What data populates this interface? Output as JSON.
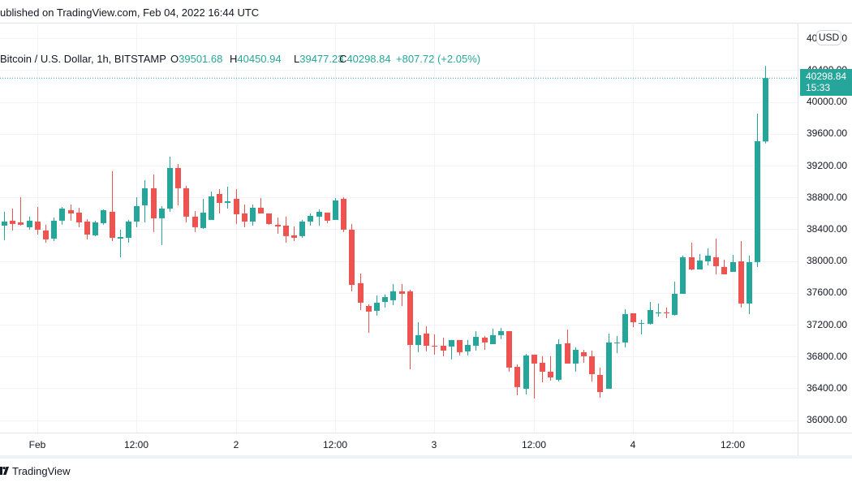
{
  "header": {
    "published": "ublished on TradingView.com, Feb 04, 2022 16:44 UTC"
  },
  "legend": {
    "symbol": "Bitcoin / U.S. Dollar, 1h, BITSTAMP",
    "open_label": "O",
    "open": "39501.68",
    "high_label": "H",
    "high": "40450.94",
    "low_label": "L",
    "low": "39477.23",
    "close_label": "C",
    "close": "40298.84",
    "change": "+807.72 (+2.05%)"
  },
  "price_axis": {
    "currency": "USD",
    "labels": [
      "40800.00",
      "40400.00",
      "40000.00",
      "39600.00",
      "39200.00",
      "38800.00",
      "38400.00",
      "38000.00",
      "37600.00",
      "37200.00",
      "36800.00",
      "36400.00",
      "36000.00"
    ],
    "last_price": "40298.84",
    "countdown": "15:33"
  },
  "time_axis": {
    "labels": [
      "Feb",
      "12:00",
      "2",
      "12:00",
      "3",
      "12:00",
      "4",
      "12:00"
    ]
  },
  "footer": {
    "brand": "TradingView"
  },
  "colors": {
    "up": "#26a69a",
    "down": "#ef5350",
    "grid": "#f0f3fa",
    "text": "#131722",
    "axis_line": "#e0e3eb"
  },
  "chart_data": {
    "type": "candlestick",
    "title": "Bitcoin / U.S. Dollar, 1h, BITSTAMP",
    "xlabel": "",
    "ylabel": "USD",
    "ylim": [
      35842,
      40995
    ],
    "grid": true,
    "legend_position": "top-left",
    "y_ticks": [
      40800,
      40400,
      40000,
      39600,
      39200,
      38800,
      38400,
      38000,
      37600,
      37200,
      36800,
      36400,
      36000
    ],
    "x_tick_labels": [
      "Feb",
      "12:00",
      "2",
      "12:00",
      "3",
      "12:00",
      "4",
      "12:00"
    ],
    "x_tick_index": [
      4,
      16,
      28,
      40,
      52,
      64,
      76,
      88
    ],
    "last_price": 40298.84,
    "times": [
      "Jan 31 20:00",
      "Jan 31 21:00",
      "Jan 31 22:00",
      "Jan 31 23:00",
      "Feb 01 00:00",
      "Feb 01 01:00",
      "Feb 01 02:00",
      "Feb 01 03:00",
      "Feb 01 04:00",
      "Feb 01 05:00",
      "Feb 01 06:00",
      "Feb 01 07:00",
      "Feb 01 08:00",
      "Feb 01 09:00",
      "Feb 01 10:00",
      "Feb 01 11:00",
      "Feb 01 12:00",
      "Feb 01 13:00",
      "Feb 01 14:00",
      "Feb 01 15:00",
      "Feb 01 16:00",
      "Feb 01 17:00",
      "Feb 01 18:00",
      "Feb 01 19:00",
      "Feb 01 20:00",
      "Feb 01 21:00",
      "Feb 01 22:00",
      "Feb 01 23:00",
      "Feb 02 00:00",
      "Feb 02 01:00",
      "Feb 02 02:00",
      "Feb 02 03:00",
      "Feb 02 04:00",
      "Feb 02 05:00",
      "Feb 02 06:00",
      "Feb 02 07:00",
      "Feb 02 08:00",
      "Feb 02 09:00",
      "Feb 02 10:00",
      "Feb 02 11:00",
      "Feb 02 12:00",
      "Feb 02 13:00",
      "Feb 02 14:00",
      "Feb 02 15:00",
      "Feb 02 16:00",
      "Feb 02 17:00",
      "Feb 02 18:00",
      "Feb 02 19:00",
      "Feb 02 20:00",
      "Feb 02 21:00",
      "Feb 02 22:00",
      "Feb 02 23:00",
      "Feb 03 00:00",
      "Feb 03 01:00",
      "Feb 03 02:00",
      "Feb 03 03:00",
      "Feb 03 04:00",
      "Feb 03 05:00",
      "Feb 03 06:00",
      "Feb 03 07:00",
      "Feb 03 08:00",
      "Feb 03 09:00",
      "Feb 03 10:00",
      "Feb 03 11:00",
      "Feb 03 12:00",
      "Feb 03 13:00",
      "Feb 03 14:00",
      "Feb 03 15:00",
      "Feb 03 16:00",
      "Feb 03 17:00",
      "Feb 03 18:00",
      "Feb 03 19:00",
      "Feb 03 20:00",
      "Feb 03 21:00",
      "Feb 03 22:00",
      "Feb 03 23:00",
      "Feb 04 00:00",
      "Feb 04 01:00",
      "Feb 04 02:00",
      "Feb 04 03:00",
      "Feb 04 04:00",
      "Feb 04 05:00",
      "Feb 04 06:00",
      "Feb 04 07:00",
      "Feb 04 08:00",
      "Feb 04 09:00",
      "Feb 04 10:00",
      "Feb 04 11:00",
      "Feb 04 12:00",
      "Feb 04 13:00",
      "Feb 04 14:00",
      "Feb 04 15:00",
      "Feb 04 16:00"
    ],
    "ohlc_order": [
      "open",
      "high",
      "low",
      "close"
    ],
    "ohlc": [
      [
        38444,
        38618,
        38261,
        38495
      ],
      [
        38506,
        38658,
        38383,
        38465
      ],
      [
        38485,
        38801,
        38444,
        38455
      ],
      [
        38424,
        38557,
        38393,
        38506
      ],
      [
        38495,
        38679,
        38332,
        38393
      ],
      [
        38383,
        38455,
        38230,
        38271
      ],
      [
        38281,
        38546,
        38250,
        38506
      ],
      [
        38506,
        38679,
        38455,
        38658
      ],
      [
        38638,
        38709,
        38506,
        38597
      ],
      [
        38608,
        38669,
        38424,
        38485
      ],
      [
        38495,
        38526,
        38271,
        38332
      ],
      [
        38322,
        38506,
        38312,
        38485
      ],
      [
        38475,
        38648,
        38455,
        38638
      ],
      [
        38618,
        39128,
        38250,
        38291
      ],
      [
        38281,
        38393,
        38046,
        38301
      ],
      [
        38291,
        38516,
        38230,
        38495
      ],
      [
        38495,
        38801,
        38424,
        38689
      ],
      [
        38699,
        39016,
        38485,
        38914
      ],
      [
        38914,
        39087,
        38363,
        38536
      ],
      [
        38536,
        38689,
        38200,
        38658
      ],
      [
        38658,
        39312,
        38618,
        39169
      ],
      [
        39169,
        39220,
        38699,
        38914
      ],
      [
        38914,
        38944,
        38485,
        38557
      ],
      [
        38557,
        38628,
        38363,
        38424
      ],
      [
        38414,
        38781,
        38404,
        38608
      ],
      [
        38516,
        38873,
        38516,
        38812
      ],
      [
        38842,
        38903,
        38597,
        38730
      ],
      [
        38730,
        38934,
        38658,
        38750
      ],
      [
        38781,
        38903,
        38465,
        38587
      ],
      [
        38597,
        38709,
        38424,
        38495
      ],
      [
        38495,
        38709,
        38444,
        38669
      ],
      [
        38669,
        38791,
        38597,
        38597
      ],
      [
        38597,
        38597,
        38455,
        38465
      ],
      [
        38455,
        38546,
        38342,
        38434
      ],
      [
        38444,
        38557,
        38230,
        38312
      ],
      [
        38322,
        38434,
        38250,
        38291
      ],
      [
        38312,
        38516,
        38291,
        38495
      ],
      [
        38495,
        38597,
        38444,
        38567
      ],
      [
        38557,
        38648,
        38444,
        38618
      ],
      [
        38608,
        38608,
        38475,
        38506
      ],
      [
        38516,
        38791,
        38516,
        38761
      ],
      [
        38781,
        38801,
        38363,
        38393
      ],
      [
        38393,
        38465,
        37618,
        37699
      ],
      [
        37720,
        37842,
        37383,
        37475
      ],
      [
        37434,
        37454,
        37097,
        37363
      ],
      [
        37373,
        37567,
        37312,
        37475
      ],
      [
        37485,
        37577,
        37414,
        37546
      ],
      [
        37506,
        37710,
        37444,
        37618
      ],
      [
        37618,
        37710,
        37434,
        37587
      ],
      [
        37618,
        37638,
        36638,
        36944
      ],
      [
        36944,
        37230,
        36853,
        37067
      ],
      [
        37087,
        37179,
        36863,
        36934
      ],
      [
        36934,
        37077,
        36822,
        36924
      ],
      [
        36934,
        37036,
        36802,
        36873
      ],
      [
        36924,
        37006,
        36761,
        37006
      ],
      [
        37006,
        37006,
        36812,
        36853
      ],
      [
        36863,
        37006,
        36812,
        36944
      ],
      [
        36934,
        37118,
        36873,
        37046
      ],
      [
        37036,
        37057,
        36883,
        36975
      ],
      [
        36954,
        37148,
        36954,
        37067
      ],
      [
        37067,
        37159,
        37016,
        37118
      ],
      [
        37118,
        37118,
        36608,
        36659
      ],
      [
        36669,
        36699,
        36312,
        36414
      ],
      [
        36393,
        36832,
        36322,
        36812
      ],
      [
        36822,
        36822,
        36271,
        36710
      ],
      [
        36720,
        36802,
        36475,
        36608
      ],
      [
        36608,
        36802,
        36495,
        36536
      ],
      [
        36506,
        37016,
        36485,
        36954
      ],
      [
        36965,
        37138,
        36710,
        36710
      ],
      [
        36710,
        36914,
        36608,
        36883
      ],
      [
        36853,
        36883,
        36720,
        36802
      ],
      [
        36802,
        36873,
        36485,
        36577
      ],
      [
        36567,
        36659,
        36281,
        36352
      ],
      [
        36393,
        37087,
        36393,
        36975
      ],
      [
        36965,
        37057,
        36842,
        36975
      ],
      [
        36975,
        37393,
        36914,
        37332
      ],
      [
        37342,
        37342,
        37169,
        37230
      ],
      [
        37210,
        37261,
        37077,
        37220
      ],
      [
        37210,
        37485,
        37200,
        37383
      ],
      [
        37342,
        37465,
        37301,
        37353
      ],
      [
        37353,
        37414,
        37281,
        37342
      ],
      [
        37322,
        37740,
        37312,
        37587
      ],
      [
        37587,
        38067,
        37587,
        38046
      ],
      [
        38046,
        38230,
        37883,
        37893
      ],
      [
        37893,
        38087,
        37893,
        38006
      ],
      [
        37995,
        38159,
        37944,
        38067
      ],
      [
        38046,
        38281,
        37832,
        37934
      ],
      [
        37924,
        38016,
        37832,
        37832
      ],
      [
        37863,
        38077,
        37863,
        37985
      ],
      [
        37995,
        38250,
        37414,
        37465
      ],
      [
        37465,
        38067,
        37332,
        37985
      ],
      [
        37985,
        39852,
        37924,
        39505
      ],
      [
        39501.68,
        40450.94,
        39477.23,
        40298.84
      ]
    ]
  }
}
